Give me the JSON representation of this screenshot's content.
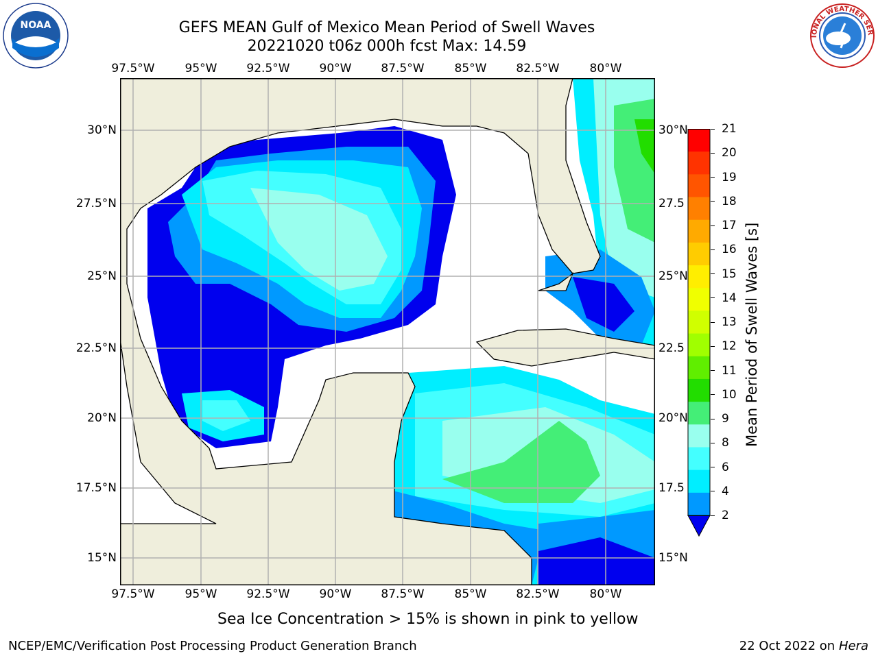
{
  "title": {
    "line1": "GEFS MEAN Gulf of Mexico Mean Period of Swell Waves",
    "line2": "20221020 t06z 000h fcst   Max: 14.59"
  },
  "map": {
    "lon_labels": [
      "97.5°W",
      "95°W",
      "92.5°W",
      "90°W",
      "87.5°W",
      "85°W",
      "82.5°W",
      "80°W"
    ],
    "lat_labels_left": [
      "30°N",
      "27.5°N",
      "25°N",
      "22.5°N",
      "20°N",
      "17.5°N",
      "15°N"
    ],
    "lat_labels_right": [
      "30°N",
      "27.5",
      "25°N",
      "22.5",
      "20°N",
      "17.5",
      "15°N"
    ],
    "colors": {
      "land": "#efeedc",
      "ocean_nodata": "#ffffff",
      "grid": "#b0b0b0"
    }
  },
  "colorbar": {
    "label": "Mean Period of Swell Waves [s]",
    "ticks": [
      "21",
      "20",
      "19",
      "18",
      "17",
      "16",
      "15",
      "14",
      "13",
      "12",
      "11",
      "10",
      "9",
      "8",
      "6",
      "4",
      "2"
    ],
    "colors": [
      "#ff0000",
      "#ff3300",
      "#ff5500",
      "#ff8000",
      "#ffaa00",
      "#ffcc00",
      "#ffee00",
      "#f0ff00",
      "#d0ff00",
      "#a0ff00",
      "#60ee00",
      "#22dd00",
      "#44ee77",
      "#99ffee",
      "#44ffff",
      "#00eeff",
      "#0099ff",
      "#0000ee"
    ]
  },
  "caption": "Sea Ice Concentration > 15% is shown in pink to yellow",
  "footer": {
    "left": "NCEP/EMC/Verification Post Processing Product Generation Branch",
    "right_prefix": "22 Oct 2022 on ",
    "right_host": "Hera"
  },
  "logos": {
    "noaa": "NOAA",
    "nws": "NATIONAL WEATHER SERVICE"
  }
}
